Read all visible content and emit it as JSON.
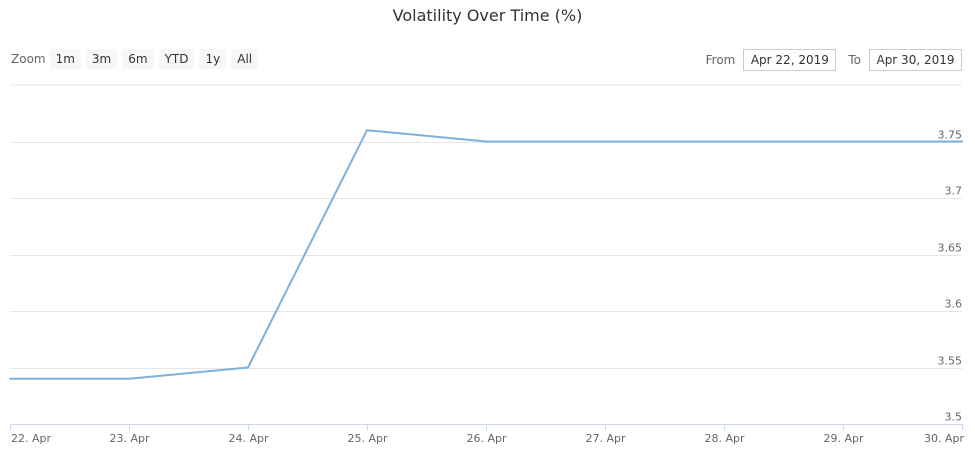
{
  "chart_data": {
    "type": "line",
    "title": "Volatility Over Time (%)",
    "xlabel": "",
    "ylabel": "",
    "categories": [
      "22. Apr",
      "23. Apr",
      "24. Apr",
      "25. Apr",
      "26. Apr",
      "27. Apr",
      "28. Apr",
      "29. Apr",
      "30. Apr"
    ],
    "series": [
      {
        "values": [
          3.54,
          3.54,
          3.55,
          3.76,
          3.75,
          3.75,
          3.75,
          3.75,
          3.75
        ]
      }
    ],
    "y_ticks": [
      "3.5",
      "3.55",
      "3.6",
      "3.65",
      "3.7",
      "3.75"
    ],
    "ylim": [
      3.5,
      3.8
    ],
    "y_axis_side": "right",
    "grid": true,
    "line_color": "#7eb0d8",
    "grid_color": "#e6e6e6"
  },
  "toolbar": {
    "zoom_label": "Zoom",
    "zoom_buttons": [
      "1m",
      "3m",
      "6m",
      "YTD",
      "1y",
      "All"
    ],
    "from_label": "From",
    "from_value": "Apr 22, 2019",
    "to_label": "To",
    "to_value": "Apr 30, 2019"
  }
}
